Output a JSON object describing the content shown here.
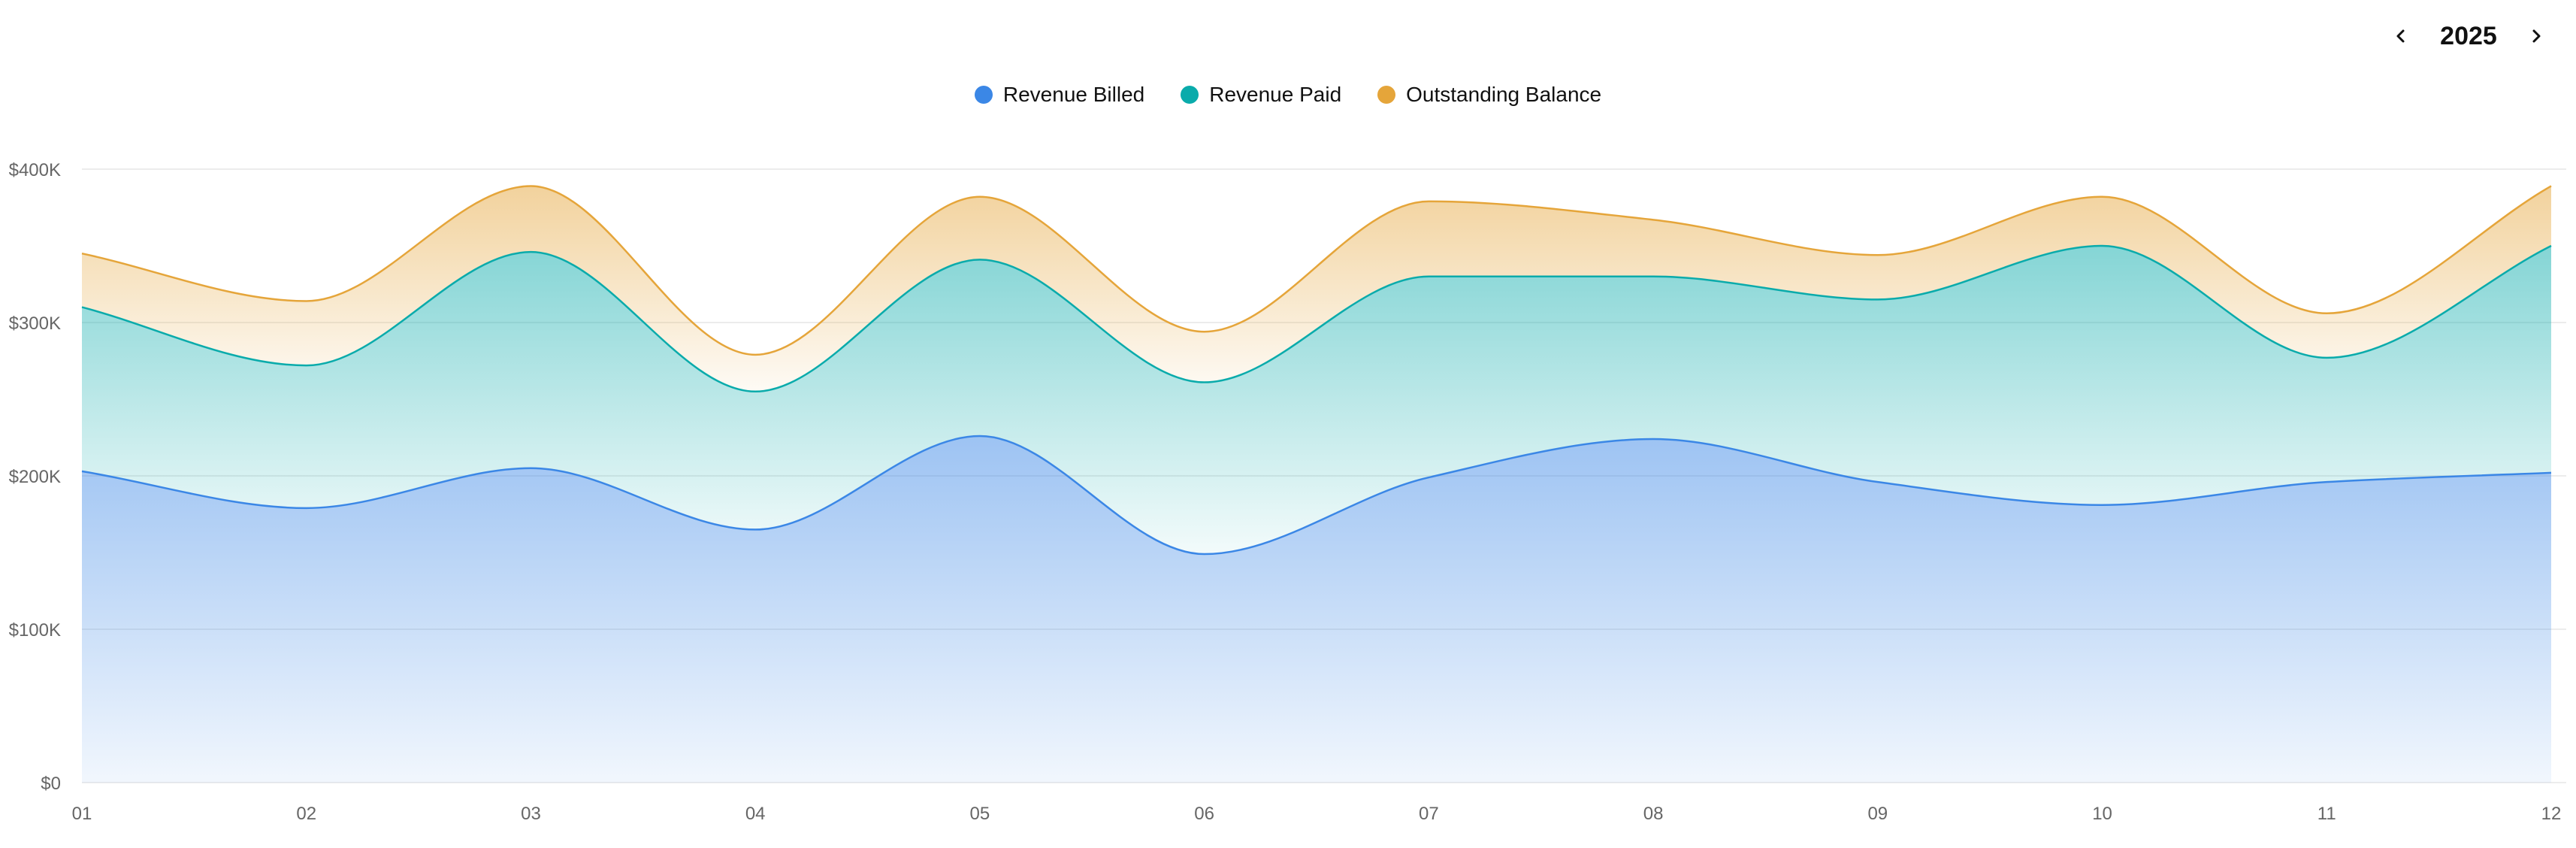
{
  "year_nav": {
    "year": "2025",
    "prev_icon": "chevron-left-icon",
    "next_icon": "chevron-right-icon"
  },
  "chart_data": {
    "type": "area",
    "stacked": true,
    "curve": "smooth",
    "categories": [
      "01",
      "02",
      "03",
      "04",
      "05",
      "06",
      "07",
      "08",
      "09",
      "10",
      "11",
      "12"
    ],
    "y_ticks": [
      "$0",
      "$100K",
      "$200K",
      "$300K",
      "$400K"
    ],
    "ylim": [
      0,
      400
    ],
    "y_unit": "thousands USD",
    "grid": true,
    "legend_position": "top-center",
    "series": [
      {
        "name": "Revenue Billed",
        "color": "#3b87e6",
        "values": [
          203,
          179,
          205,
          165,
          226,
          149,
          199,
          224,
          196,
          181,
          196,
          202
        ]
      },
      {
        "name": "Revenue Paid",
        "color": "#0aabab",
        "values": [
          107,
          93,
          141,
          90,
          115,
          112,
          131,
          106,
          119,
          169,
          81,
          148
        ]
      },
      {
        "name": "Outstanding Balance",
        "color": "#e5a53a",
        "values": [
          35,
          42,
          43,
          24,
          41,
          33,
          49,
          37,
          29,
          32,
          29,
          39
        ]
      }
    ]
  }
}
